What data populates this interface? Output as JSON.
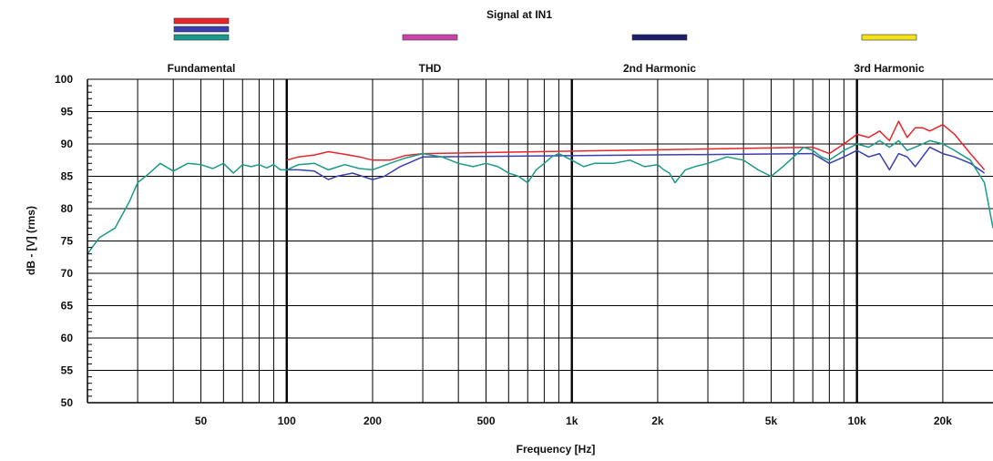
{
  "chart_data": {
    "type": "line",
    "title": "Signal at IN1",
    "xlabel": "Frequency [Hz]",
    "ylabel": "dB - [V] (rms)",
    "xscale": "log",
    "xlim": [
      20,
      30000
    ],
    "ylim": [
      50,
      100
    ],
    "grid": true,
    "legend_position": "top",
    "x_ticks": [
      {
        "value": 50,
        "label": "50"
      },
      {
        "value": 100,
        "label": "100"
      },
      {
        "value": 200,
        "label": "200"
      },
      {
        "value": 500,
        "label": "500"
      },
      {
        "value": 1000,
        "label": "1k"
      },
      {
        "value": 2000,
        "label": "2k"
      },
      {
        "value": 5000,
        "label": "5k"
      },
      {
        "value": 10000,
        "label": "10k"
      },
      {
        "value": 20000,
        "label": "20k"
      }
    ],
    "y_ticks": [
      {
        "value": 100,
        "label": "100"
      },
      {
        "value": 95,
        "label": "95"
      },
      {
        "value": 90,
        "label": "90"
      },
      {
        "value": 85,
        "label": "85"
      },
      {
        "value": 80,
        "label": "80"
      },
      {
        "value": 75,
        "label": "75"
      },
      {
        "value": 70,
        "label": "70"
      },
      {
        "value": 65,
        "label": "65"
      },
      {
        "value": 60,
        "label": "60"
      },
      {
        "value": 55,
        "label": "55"
      },
      {
        "value": 50,
        "label": "50"
      }
    ],
    "legend_groups": [
      {
        "label": "Fundamental",
        "swatches": [
          "#e8262b",
          "#3a3fb0",
          "#1a9a8a"
        ]
      },
      {
        "label": "THD",
        "swatches": [
          "#cc44aa"
        ]
      },
      {
        "label": "2nd Harmonic",
        "swatches": [
          "#1e1e6e"
        ]
      },
      {
        "label": "3rd Harmonic",
        "swatches": [
          "#f2e21a"
        ]
      }
    ],
    "series": [
      {
        "color": "#e8262b",
        "x": [
          100,
          110,
          125,
          140,
          160,
          180,
          200,
          230,
          260,
          300,
          7000,
          8000,
          9000,
          10000,
          11000,
          12000,
          13000,
          14000,
          15000,
          16000,
          17000,
          18000,
          20000,
          22000,
          25000,
          28000
        ],
        "y": [
          87.5,
          88.0,
          88.3,
          88.8,
          88.4,
          88.0,
          87.5,
          87.5,
          88.2,
          88.5,
          89.5,
          88.5,
          90.0,
          91.5,
          91.0,
          92.0,
          90.5,
          93.5,
          91.0,
          92.5,
          92.5,
          92.0,
          93.0,
          91.5,
          88.5,
          86.0
        ]
      },
      {
        "color": "#3a3fb0",
        "x": [
          100,
          110,
          125,
          140,
          150,
          170,
          200,
          220,
          250,
          300,
          7000,
          8000,
          9000,
          10000,
          11000,
          12000,
          13000,
          14000,
          15000,
          16000,
          18000,
          20000,
          22000,
          25000,
          28000
        ],
        "y": [
          86.0,
          86.0,
          85.8,
          84.5,
          85.0,
          85.5,
          84.5,
          85.0,
          86.5,
          88.0,
          88.5,
          87.0,
          88.0,
          89.0,
          88.0,
          88.5,
          86.0,
          88.5,
          88.0,
          86.5,
          89.5,
          88.5,
          88.0,
          87.0,
          85.5
        ]
      },
      {
        "color": "#1a9a8a",
        "x": [
          20,
          22,
          25,
          28,
          30,
          33,
          36,
          40,
          45,
          50,
          55,
          60,
          65,
          70,
          75,
          80,
          85,
          90,
          95,
          100,
          110,
          125,
          140,
          160,
          180,
          200,
          230,
          260,
          300,
          350,
          400,
          450,
          500,
          550,
          600,
          650,
          700,
          750,
          800,
          850,
          900,
          1000,
          1100,
          1200,
          1400,
          1600,
          1800,
          2000,
          2100,
          2200,
          2300,
          2500,
          2700,
          3000,
          3500,
          4000,
          4500,
          5000,
          5500,
          6000,
          6500,
          7000,
          7500,
          8000,
          9000,
          10000,
          11000,
          12000,
          13000,
          14000,
          15000,
          16000,
          18000,
          20000,
          22000,
          25000,
          28000,
          30000
        ],
        "y": [
          73.0,
          75.5,
          77.0,
          81.0,
          84.0,
          85.5,
          87.0,
          85.8,
          87.0,
          86.8,
          86.2,
          87.0,
          85.5,
          86.8,
          86.5,
          86.8,
          86.3,
          86.8,
          86.0,
          86.0,
          86.8,
          87.0,
          86.0,
          86.8,
          86.2,
          86.0,
          87.0,
          87.8,
          88.5,
          88.0,
          87.0,
          86.5,
          87.0,
          86.5,
          85.5,
          85.0,
          84.0,
          86.0,
          87.0,
          88.0,
          88.5,
          87.5,
          86.5,
          87.0,
          87.0,
          87.5,
          86.5,
          86.8,
          86.0,
          85.5,
          84.0,
          86.0,
          86.5,
          87.0,
          88.0,
          87.5,
          86.0,
          85.0,
          86.5,
          88.0,
          89.5,
          89.0,
          88.0,
          87.5,
          89.0,
          90.0,
          89.5,
          90.5,
          89.5,
          90.5,
          89.0,
          89.5,
          90.5,
          90.0,
          89.0,
          87.5,
          84.0,
          77.0
        ]
      }
    ]
  }
}
